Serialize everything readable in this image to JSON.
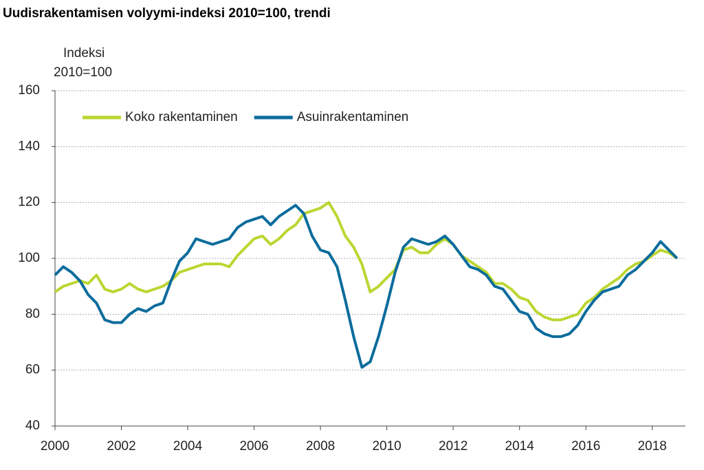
{
  "chart_data": {
    "type": "line",
    "title": "Uudisrakentamisen volyymi-indeksi 2010=100, trendi",
    "ylabel": [
      "Indeksi",
      "2010=100"
    ],
    "x": [
      2000,
      2000.25,
      2000.5,
      2000.75,
      2001,
      2001.25,
      2001.5,
      2001.75,
      2002,
      2002.25,
      2002.5,
      2002.75,
      2003,
      2003.25,
      2003.5,
      2003.75,
      2004,
      2004.25,
      2004.5,
      2004.75,
      2005,
      2005.25,
      2005.5,
      2005.75,
      2006,
      2006.25,
      2006.5,
      2006.75,
      2007,
      2007.25,
      2007.5,
      2007.75,
      2008,
      2008.25,
      2008.5,
      2008.75,
      2009,
      2009.25,
      2009.5,
      2009.75,
      2010,
      2010.25,
      2010.5,
      2010.75,
      2011,
      2011.25,
      2011.5,
      2011.75,
      2012,
      2012.25,
      2012.5,
      2012.75,
      2013,
      2013.25,
      2013.5,
      2013.75,
      2014,
      2014.25,
      2014.5,
      2014.75,
      2015,
      2015.25,
      2015.5,
      2015.75,
      2016,
      2016.25,
      2016.5,
      2016.75,
      2017,
      2017.25,
      2017.5,
      2017.75,
      2018,
      2018.25,
      2018.5,
      2018.75
    ],
    "series": [
      {
        "name": "Koko rakentaminen",
        "color": "#bcd631",
        "values": [
          88,
          90,
          91,
          92,
          91,
          94,
          89,
          88,
          89,
          91,
          89,
          88,
          89,
          90,
          92,
          95,
          96,
          97,
          98,
          98,
          98,
          97,
          101,
          104,
          107,
          108,
          105,
          107,
          110,
          112,
          116,
          117,
          118,
          120,
          115,
          108,
          104,
          98,
          88,
          90,
          93,
          96,
          103,
          104,
          102,
          102,
          105,
          107,
          105,
          101,
          99,
          97,
          95,
          91,
          91,
          89,
          86,
          85,
          81,
          79,
          78,
          78,
          79,
          80,
          84,
          86,
          89,
          91,
          93,
          96,
          98,
          99,
          101,
          103,
          102,
          100
        ]
      },
      {
        "name": "Asuinrakentaminen",
        "color": "#0b6c9c",
        "values": [
          94,
          97,
          95,
          92,
          87,
          84,
          78,
          77,
          77,
          80,
          82,
          81,
          83,
          84,
          92,
          99,
          102,
          107,
          106,
          105,
          106,
          107,
          111,
          113,
          114,
          115,
          112,
          115,
          117,
          119,
          116,
          108,
          103,
          102,
          97,
          85,
          72,
          61,
          63,
          72,
          83,
          95,
          104,
          107,
          106,
          105,
          106,
          108,
          105,
          101,
          97,
          96,
          94,
          90,
          89,
          85,
          81,
          80,
          75,
          73,
          72,
          72,
          73,
          76,
          81,
          85,
          88,
          89,
          90,
          94,
          96,
          99,
          102,
          106,
          103,
          100
        ]
      }
    ],
    "xlim": [
      2000,
      2019
    ],
    "xticks": [
      2000,
      2002,
      2004,
      2006,
      2008,
      2010,
      2012,
      2014,
      2016,
      2018
    ],
    "ylim": [
      40,
      160
    ],
    "yticks": [
      40,
      60,
      80,
      100,
      120,
      140,
      160
    ],
    "grid": true,
    "legend": "top-left"
  }
}
